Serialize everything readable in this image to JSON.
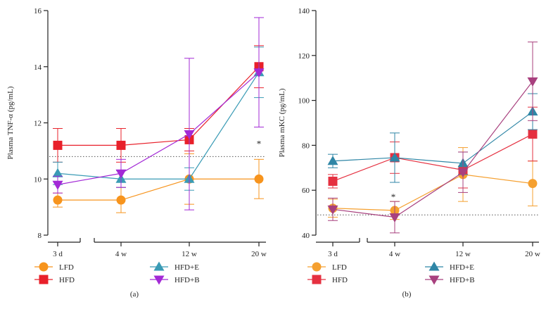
{
  "chart_data": [
    {
      "panel_label": "(a)",
      "type": "line",
      "ylabel": "Plasma TNF-α (pg/mL)",
      "ylim": [
        8,
        16
      ],
      "yticks": [
        "8",
        "10",
        "12",
        "14",
        "16"
      ],
      "categories": [
        "3 d",
        "4 w",
        "12 w",
        "20 w"
      ],
      "reference_line": 10.8,
      "annotations": [
        {
          "text": "*",
          "category": "20 w",
          "y": 11.25
        }
      ],
      "series": [
        {
          "name": "LFD",
          "marker": "circle",
          "color": "#f7941d",
          "values": [
            9.25,
            9.25,
            10.0,
            10.0
          ],
          "err": [
            0.25,
            0.45,
            0.9,
            0.7
          ]
        },
        {
          "name": "HFD",
          "marker": "square",
          "color": "#e8202a",
          "values": [
            11.2,
            11.2,
            11.4,
            14.0
          ],
          "err": [
            0.6,
            0.6,
            0.4,
            0.75
          ]
        },
        {
          "name": "HFD+E",
          "marker": "triangle-up",
          "color": "#3a9bb5",
          "values": [
            10.2,
            10.0,
            10.0,
            13.8
          ],
          "err": [
            0.4,
            0.3,
            0.4,
            0.9
          ]
        },
        {
          "name": "HFD+B",
          "marker": "triangle-down",
          "color": "#a32ad6",
          "values": [
            9.8,
            10.2,
            11.6,
            13.8
          ],
          "err": [
            0.3,
            0.5,
            2.7,
            1.95
          ]
        }
      ]
    },
    {
      "panel_label": "(b)",
      "type": "line",
      "ylabel": "Plasma mKC (pg/mL)",
      "ylim": [
        40,
        140
      ],
      "yticks": [
        "40",
        "60",
        "80",
        "100",
        "120",
        "140"
      ],
      "categories": [
        "3 d",
        "4 w",
        "12 w",
        "20 w"
      ],
      "reference_line": 49,
      "annotations": [
        {
          "text": "*",
          "category": "4 w",
          "y": 57
        }
      ],
      "series": [
        {
          "name": "LFD",
          "marker": "circle",
          "color": "#f5a030",
          "values": [
            52,
            51,
            67,
            63
          ],
          "err": [
            4,
            4,
            12,
            10
          ]
        },
        {
          "name": "HFD",
          "marker": "square",
          "color": "#e53040",
          "values": [
            64,
            74.5,
            69,
            85
          ],
          "err": [
            3,
            7,
            8,
            12
          ]
        },
        {
          "name": "HFD+E",
          "marker": "triangle-up",
          "color": "#2f86a6",
          "values": [
            73,
            74.5,
            72,
            95
          ],
          "err": [
            3,
            11,
            5,
            8
          ]
        },
        {
          "name": "HFD+B",
          "marker": "triangle-down",
          "color": "#a8407e",
          "values": [
            51.5,
            48,
            68,
            108.5
          ],
          "err": [
            5,
            7,
            9,
            17.5
          ]
        }
      ]
    }
  ]
}
